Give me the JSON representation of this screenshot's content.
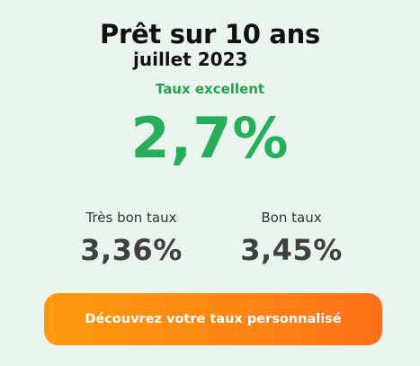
{
  "header": {
    "title": "Prêt sur 10 ans",
    "subtitle": "juillet 2023"
  },
  "main_rate": {
    "label": "Taux excellent",
    "value": "2,7%"
  },
  "rates": [
    {
      "label": "Très bon taux",
      "value": "3,36%"
    },
    {
      "label": "Bon taux",
      "value": "3,45%"
    }
  ],
  "cta": {
    "label": "Découvrez votre taux personnalisé"
  },
  "colors": {
    "background": "#eaf5ee",
    "accent_green": "#27ae5b",
    "button_orange": "#ff8414"
  }
}
